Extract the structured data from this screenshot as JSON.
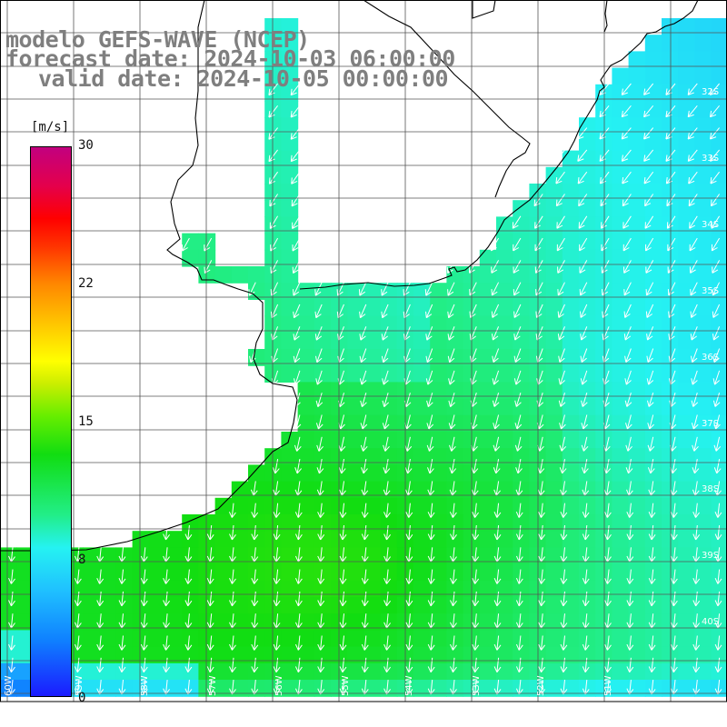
{
  "header": {
    "model": "modelo GEFS-WAVE (NCEP)",
    "forecast": "forecast date: 2024-10-03 06:00:00",
    "valid": "valid date: 2024-10-05 00:00:00"
  },
  "colorbar": {
    "unit": "[m/s]",
    "ticks": [
      "30",
      "22",
      "15",
      "8",
      "0"
    ],
    "tick_values": [
      30,
      22,
      15,
      8,
      0
    ],
    "range": [
      0,
      30
    ]
  },
  "map": {
    "lat_labels": [
      "32S",
      "33S",
      "34S",
      "35S",
      "36S",
      "37S",
      "38S",
      "39S",
      "40S"
    ],
    "lon_labels": [
      "60W",
      "59W",
      "58W",
      "57W",
      "56W",
      "55W",
      "54W",
      "53W",
      "52W",
      "51W"
    ],
    "arrow_color": "#ffffff",
    "grid_color": "#555555",
    "coast_color": "#000000",
    "land_color": "#ffffff"
  }
}
